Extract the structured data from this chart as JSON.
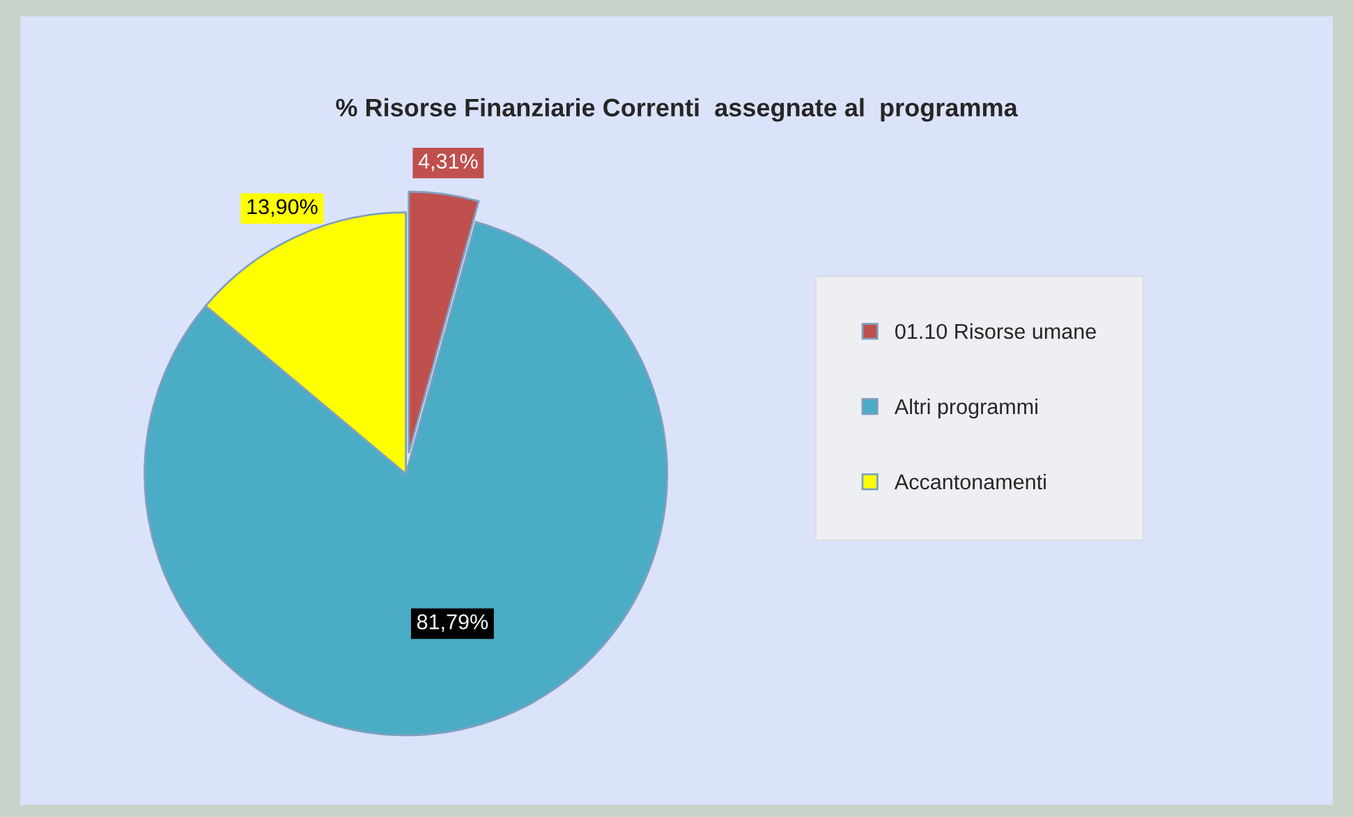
{
  "chart_data": {
    "type": "pie",
    "title": "% Risorse Finanziarie Correnti  assegnate al  programma",
    "categories": [
      "01.10 Risorse umane",
      "Altri programmi",
      "Accantonamenti"
    ],
    "values": [
      4.31,
      81.79,
      13.9
    ],
    "colors": [
      "#c0504d",
      "#4bacc6",
      "#ffff00"
    ],
    "value_labels": [
      "4,31%",
      "81,79%",
      "13,90%"
    ],
    "legend": "right"
  }
}
